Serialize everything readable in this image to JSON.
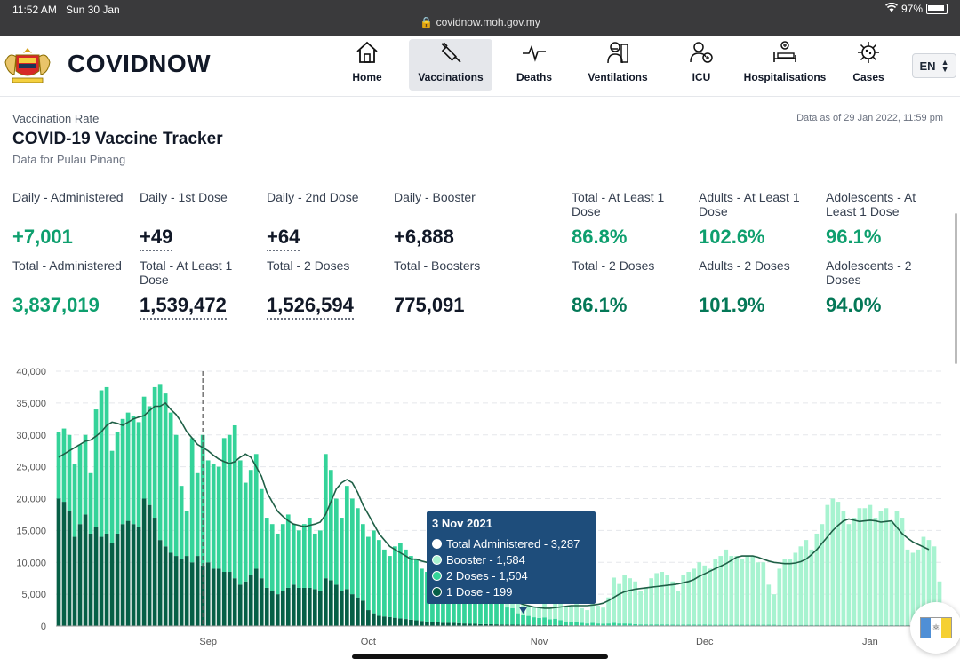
{
  "status_bar": {
    "time": "11:52 AM",
    "date": "Sun 30 Jan",
    "url": "covidnow.moh.gov.my",
    "battery": "97%"
  },
  "header": {
    "brand": "COVIDNOW",
    "nav": [
      {
        "label": "Home",
        "icon": "home-icon"
      },
      {
        "label": "Vaccinations",
        "icon": "syringe-icon"
      },
      {
        "label": "Deaths",
        "icon": "pulse-icon"
      },
      {
        "label": "Ventilations",
        "icon": "ventilator-icon"
      },
      {
        "label": "ICU",
        "icon": "icu-icon"
      },
      {
        "label": "Hospitalisations",
        "icon": "hospital-bed-icon"
      },
      {
        "label": "Cases",
        "icon": "virus-icon"
      }
    ],
    "active_nav": "Vaccinations",
    "language": "EN"
  },
  "page": {
    "eyebrow": "Vaccination Rate",
    "title": "COVID-19 Vaccine Tracker",
    "region": "Data for Pulau Pinang",
    "as_of": "Data as of 29 Jan 2022, 11:59 pm"
  },
  "stats": {
    "daily_administered": {
      "label": "Daily - Administered",
      "value": "+7,001"
    },
    "daily_first": {
      "label": "Daily - 1st Dose",
      "value": "+49"
    },
    "daily_second": {
      "label": "Daily - 2nd Dose",
      "value": "+64"
    },
    "daily_booster": {
      "label": "Daily - Booster",
      "value": "+6,888"
    },
    "total_at_least_1": {
      "label": "Total - At Least 1 Dose",
      "value": "86.8%"
    },
    "adults_at_least_1": {
      "label": "Adults - At Least 1 Dose",
      "value": "102.6%"
    },
    "adolescents_at_least_1": {
      "label": "Adolescents - At Least 1 Dose",
      "value": "96.1%"
    },
    "total_administered": {
      "label": "Total - Administered",
      "value": "3,837,019"
    },
    "total_at_least_1_count": {
      "label": "Total - At Least 1 Dose",
      "value": "1,539,472"
    },
    "total_2_doses_count": {
      "label": "Total - 2 Doses",
      "value": "1,526,594"
    },
    "total_boosters": {
      "label": "Total - Boosters",
      "value": "775,091"
    },
    "total_2_doses": {
      "label": "Total - 2 Doses",
      "value": "86.1%"
    },
    "adults_2_doses": {
      "label": "Adults - 2 Doses",
      "value": "101.9%"
    },
    "adolescents_2_doses": {
      "label": "Adolescents - 2 Doses",
      "value": "94.0%"
    }
  },
  "colors": {
    "booster": "#a7f3d0",
    "dose2": "#34d399",
    "dose1": "#065f46",
    "line": "#1f5f46",
    "tooltip": "#1e4d7b"
  },
  "tooltip": {
    "title": "3 Nov 2021",
    "rows": [
      {
        "label": "Total Administered - 3,287"
      },
      {
        "label": "Booster - 1,584"
      },
      {
        "label": "2 Doses - 1,504"
      },
      {
        "label": "1 Dose - 199"
      }
    ]
  },
  "chart_data": {
    "type": "bar",
    "stacked": true,
    "title": "",
    "xlabel": "",
    "ylabel": "",
    "ylim": [
      0,
      40000
    ],
    "yticks": [
      "40,000",
      "35,000",
      "30,000",
      "25,000",
      "20,000",
      "15,000",
      "10,000",
      "5,000",
      "0"
    ],
    "xtick_labels": [
      "Sep",
      "Oct",
      "Nov",
      "Dec",
      "Jan"
    ],
    "xtick_day_index": [
      28,
      58,
      90,
      121,
      152
    ],
    "x_range_days": [
      "16 Aug 2021",
      "29 Jan 2022"
    ],
    "series_keys": [
      "1 Dose",
      "2 Doses",
      "Booster"
    ],
    "totals": [
      30500,
      31000,
      30000,
      25500,
      28500,
      30000,
      24000,
      34000,
      37000,
      37500,
      27500,
      30500,
      32500,
      33500,
      33000,
      32000,
      36000,
      34500,
      37500,
      38000,
      36500,
      33500,
      30000,
      22000,
      18000,
      29500,
      24000,
      30000,
      26000,
      25500,
      25000,
      29500,
      30000,
      31500,
      26000,
      22500,
      24500,
      27000,
      21500,
      17000,
      16000,
      14500,
      16000,
      17500,
      16000,
      15000,
      16000,
      17000,
      14500,
      15000,
      27000,
      24500,
      20000,
      17000,
      22000,
      20000,
      18500,
      16000,
      14000,
      15000,
      13500,
      12000,
      11000,
      12500,
      13000,
      12000,
      11000,
      10500,
      9000,
      8500,
      9000,
      11000,
      10000,
      8000,
      9000,
      7500,
      8000,
      7500,
      6500,
      6000,
      5500,
      5500,
      5000,
      4500,
      4000,
      4500,
      3500,
      3287,
      3200,
      3000,
      3000,
      3500,
      3000,
      4000,
      3500,
      3000,
      3300,
      3800,
      2800,
      2500,
      4000,
      3200,
      2900,
      4500,
      7600,
      6600,
      8000,
      7500,
      7000,
      5500,
      6000,
      7500,
      8300,
      8500,
      8000,
      7000,
      5500,
      8000,
      8500,
      9000,
      10000,
      9500,
      9000,
      10500,
      11000,
      12000,
      11000,
      11000,
      10500,
      11000,
      11000,
      10000,
      10000,
      6500,
      5000,
      9000,
      10500,
      10500,
      11500,
      12500,
      13500,
      12000,
      14500,
      16000,
      19000,
      20000,
      19500,
      18000,
      16000,
      17000,
      18500,
      18500,
      19000,
      17000,
      18000,
      18500,
      16500,
      18000,
      17000,
      12000,
      11500,
      12000,
      14000,
      13500,
      12500,
      7000
    ],
    "dose1": [
      20000,
      19500,
      18000,
      14000,
      16000,
      17500,
      14500,
      15500,
      14000,
      14500,
      13000,
      14500,
      16000,
      16500,
      16000,
      15500,
      20000,
      19000,
      17000,
      13500,
      12500,
      11500,
      11000,
      10500,
      11000,
      10000,
      11000,
      9500,
      10000,
      9000,
      9000,
      8500,
      8500,
      7500,
      6500,
      7000,
      8000,
      9000,
      7500,
      6000,
      5500,
      5000,
      5500,
      6000,
      6500,
      6000,
      6000,
      6000,
      5800,
      5500,
      7500,
      7200,
      6500,
      5500,
      5800,
      5000,
      4500,
      4000,
      2500,
      2000,
      1600,
      1500,
      1400,
      1300,
      1200,
      1100,
      1000,
      900,
      800,
      700,
      600,
      600,
      500,
      500,
      500,
      450,
      400,
      350,
      350,
      300,
      300,
      280,
      260,
      240,
      220,
      210,
      205,
      199,
      190,
      180,
      170,
      160,
      150,
      150,
      140,
      130,
      120,
      120,
      110,
      100,
      100,
      100,
      100,
      100,
      100,
      100,
      100,
      100,
      100,
      100,
      100,
      100,
      100,
      100,
      100,
      100,
      100,
      100,
      100,
      100,
      100,
      100,
      100,
      100,
      100,
      100,
      100,
      100,
      100,
      100,
      100,
      100,
      100,
      100,
      100,
      100,
      100,
      100,
      100,
      100,
      100,
      100,
      100,
      100,
      100,
      100,
      100,
      100,
      100,
      100,
      100,
      100,
      100,
      100,
      100,
      100,
      100,
      100,
      100,
      100,
      100,
      100,
      100,
      100,
      100,
      49
    ],
    "dose2": [
      10500,
      11500,
      12000,
      11500,
      12500,
      12500,
      9500,
      18500,
      23000,
      23000,
      14500,
      16000,
      16500,
      17000,
      17000,
      16500,
      16000,
      15500,
      20500,
      24500,
      24000,
      22000,
      19000,
      11500,
      7000,
      19500,
      13000,
      20500,
      16000,
      16500,
      16000,
      21000,
      21500,
      24000,
      19500,
      15500,
      16500,
      18000,
      14000,
      11000,
      10500,
      9500,
      10500,
      11500,
      9500,
      9000,
      10000,
      11000,
      8700,
      9500,
      19500,
      17300,
      13500,
      11500,
      16200,
      15000,
      14000,
      12000,
      11500,
      13000,
      11900,
      10500,
      9600,
      11200,
      11800,
      10900,
      10000,
      9600,
      8200,
      7800,
      8400,
      10400,
      9500,
      7500,
      8500,
      7000,
      7500,
      7000,
      6000,
      5500,
      5000,
      4800,
      4200,
      3500,
      2700,
      2600,
      1800,
      1504,
      1400,
      1200,
      1100,
      1200,
      900,
      1000,
      800,
      600,
      500,
      500,
      400,
      300,
      400,
      300,
      250,
      300,
      400,
      300,
      300,
      250,
      200,
      150,
      150,
      150,
      150,
      150,
      150,
      120,
      100,
      120,
      120,
      120,
      120,
      110,
      100,
      100,
      100,
      100,
      100,
      100,
      100,
      100,
      100,
      100,
      100,
      100,
      100,
      80,
      70,
      80,
      80,
      80,
      80,
      80,
      80,
      80,
      80,
      80,
      80,
      80,
      80,
      80,
      70,
      70,
      70,
      70,
      70,
      70,
      70,
      70,
      70,
      70,
      70,
      70,
      70,
      70,
      70,
      70,
      64
    ],
    "trend": [
      26500,
      27000,
      27500,
      28000,
      28500,
      29000,
      29200,
      29800,
      30500,
      31500,
      32000,
      31800,
      31500,
      32000,
      32500,
      32800,
      33000,
      33800,
      34500,
      34500,
      35000,
      34000,
      33200,
      32000,
      30500,
      29500,
      28500,
      28000,
      27500,
      26800,
      26200,
      25800,
      25500,
      25800,
      26500,
      27000,
      26500,
      25000,
      23500,
      21000,
      19500,
      18000,
      17200,
      16500,
      16000,
      15800,
      15600,
      15800,
      16000,
      16300,
      17500,
      19500,
      21500,
      22500,
      23000,
      22500,
      21000,
      19000,
      17500,
      16000,
      14500,
      13500,
      12500,
      12000,
      11500,
      11000,
      10500,
      10500,
      10200,
      10000,
      9800,
      9600,
      9400,
      9000,
      8500,
      8200,
      7800,
      7500,
      7000,
      6500,
      6000,
      5500,
      5000,
      4700,
      4300,
      4000,
      3700,
      3400,
      3200,
      3000,
      2900,
      2800,
      2800,
      2900,
      3000,
      3100,
      3200,
      3200,
      3200,
      3200,
      3300,
      3400,
      3600,
      4000,
      4500,
      5000,
      5400,
      5600,
      5800,
      5900,
      6000,
      6100,
      6200,
      6300,
      6400,
      6500,
      6600,
      6800,
      7000,
      7300,
      7800,
      8200,
      8600,
      9000,
      9400,
      9800,
      10300,
      10800,
      11000,
      11000,
      11000,
      10800,
      10500,
      10200,
      10000,
      9900,
      9800,
      9800,
      9900,
      10100,
      10500,
      11200,
      12000,
      13000,
      14000,
      15000,
      15800,
      16500,
      16800,
      16600,
      16400,
      16500,
      16600,
      16500,
      16300,
      16400,
      16500,
      15500,
      14500,
      13800,
      13200,
      12800,
      12400,
      12000
    ]
  }
}
